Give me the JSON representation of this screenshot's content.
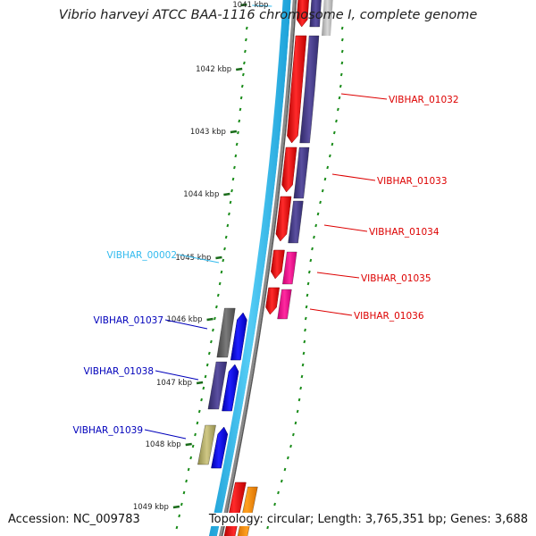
{
  "header": {
    "title": "Vibrio harveyi ATCC BAA-1116 chromosome I, complete genome"
  },
  "footer": {
    "accession": "Accession: NC_009783",
    "summary": "Topology: circular; Length: 3,765,351 bp; Genes: 3,688"
  },
  "ticks": [
    {
      "label": "1041 kbp"
    },
    {
      "label": "1042 kbp"
    },
    {
      "label": "1043 kbp"
    },
    {
      "label": "1044 kbp"
    },
    {
      "label": "1045 kbp"
    },
    {
      "label": "1046 kbp"
    },
    {
      "label": "1047 kbp"
    },
    {
      "label": "1048 kbp"
    },
    {
      "label": "1049 kbp"
    }
  ],
  "gene_labels": {
    "right": [
      {
        "text": "VIBHAR_01032",
        "color": "#dd0000"
      },
      {
        "text": "VIBHAR_01033",
        "color": "#dd0000"
      },
      {
        "text": "VIBHAR_01034",
        "color": "#dd0000"
      },
      {
        "text": "VIBHAR_01035",
        "color": "#dd0000"
      },
      {
        "text": "VIBHAR_01036",
        "color": "#dd0000"
      }
    ],
    "left": [
      {
        "text": "VIBHAR_00002",
        "color": "#33bbee"
      },
      {
        "text": "VIBHAR_01037",
        "color": "#0000bb"
      },
      {
        "text": "VIBHAR_01038",
        "color": "#0000bb"
      },
      {
        "text": "VIBHAR_01039",
        "color": "#0000bb"
      }
    ]
  },
  "colors": {
    "forward_cds": "#ff0000",
    "reverse_cds": "#0000ff",
    "cog_purple": "#483d8b",
    "cog_pink": "#ff1493",
    "cog_gray": "#666666",
    "cog_khaki": "#bdb76b",
    "cog_orange": "#ff8c00",
    "backbone_blue": "#33bbee",
    "tick_green": "#006400"
  }
}
